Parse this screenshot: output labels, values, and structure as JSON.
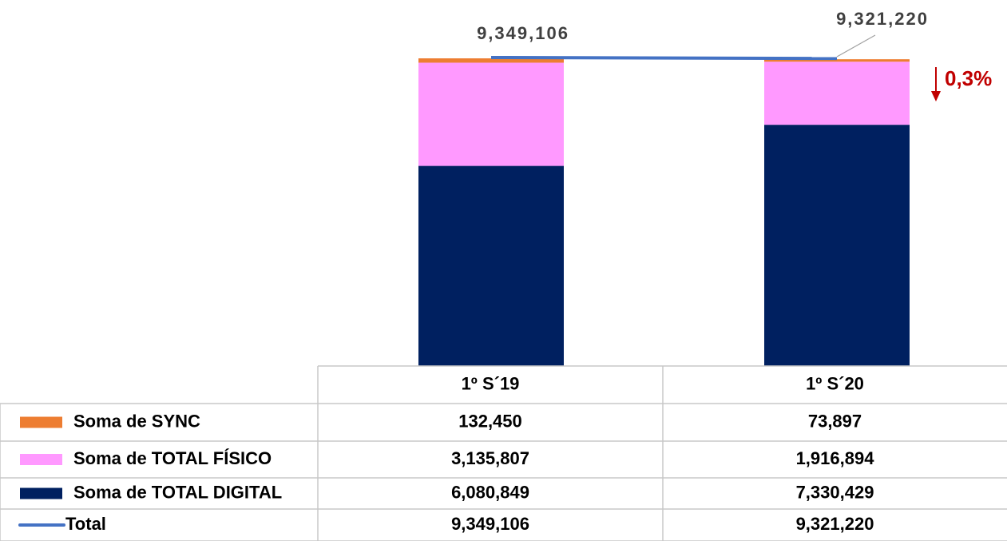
{
  "chart_data": {
    "type": "stacked_bar_line",
    "categories": [
      "1º S´19",
      "1º S´20"
    ],
    "series": [
      {
        "name": "Soma de SYNC",
        "color": "#ed7d31",
        "values": [
          132450,
          73897
        ],
        "value_labels": [
          "132,450",
          "73,897"
        ]
      },
      {
        "name": "Soma de TOTAL FÍSICO",
        "color": "#ff99ff",
        "values": [
          3135807,
          1916894
        ],
        "value_labels": [
          "3,135,807",
          "1,916,894"
        ]
      },
      {
        "name": "Soma de TOTAL DIGITAL",
        "color": "#002060",
        "values": [
          6080849,
          7330429
        ],
        "value_labels": [
          "6,080,849",
          "7,330,429"
        ]
      },
      {
        "name": "Total",
        "color": "#4472c4",
        "type": "line",
        "values": [
          9349106,
          9321220
        ],
        "value_labels": [
          "9,349,106",
          "9,321,220"
        ]
      }
    ],
    "annotation": "0,3%",
    "annotation_color": "#c00000"
  }
}
